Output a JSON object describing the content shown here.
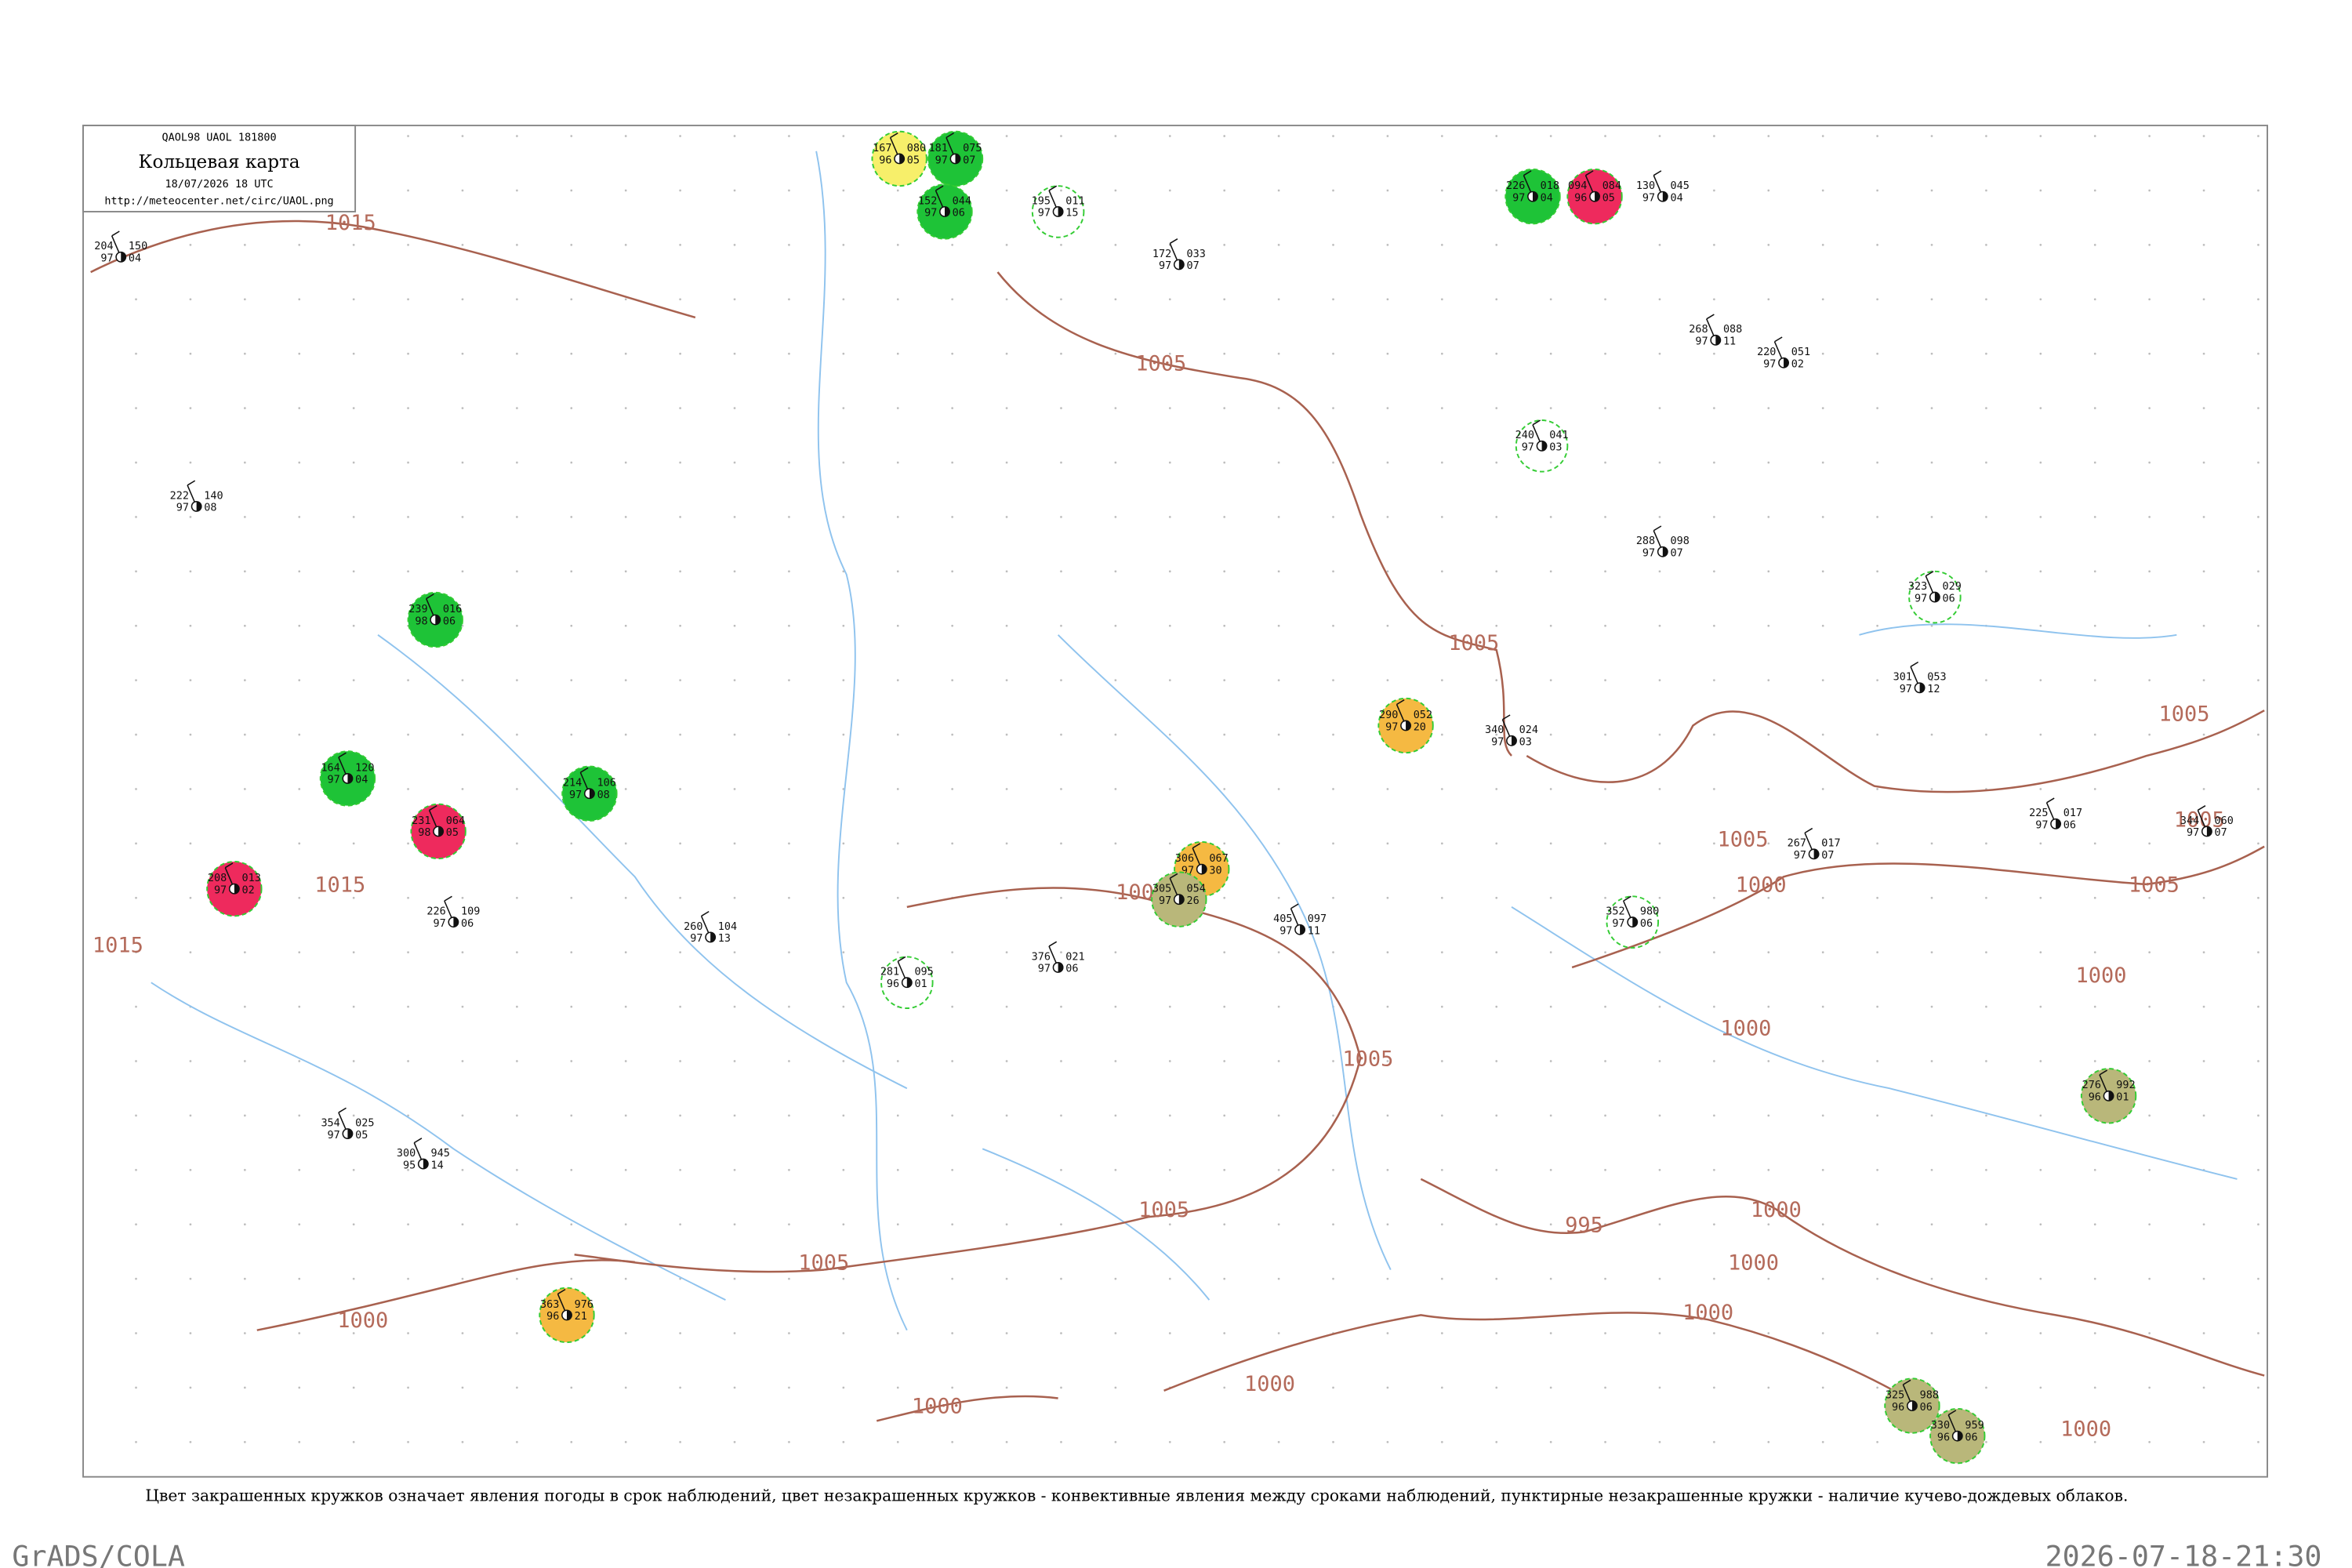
{
  "header": {
    "code": "QAOL98  UAOL  181800",
    "title": "Кольцевая карта",
    "date": "18/07/2026 18 UTC",
    "url": "http://meteocenter.net/circ/UAOL.png"
  },
  "isobar_labels": [
    "1015",
    "1015",
    "1015",
    "1005",
    "1005",
    "1005",
    "1000",
    "1005",
    "1005",
    "1005",
    "1000",
    "1000",
    "1000",
    "1000",
    "1000",
    "1000",
    "1000",
    "1000",
    "1000",
    "1005",
    "1005",
    "1005",
    "995",
    "1005"
  ],
  "stations": [
    {
      "t": "181",
      "d": "97",
      "p": "075",
      "c": "07",
      "fill": "#1ec337"
    },
    {
      "t": "226",
      "d": "97",
      "p": "018",
      "c": "04",
      "fill": "#1ec337"
    },
    {
      "t": "094",
      "d": "96",
      "p": "084",
      "c": "05",
      "fill": "#ee2a5d"
    },
    {
      "t": "167",
      "d": "96",
      "p": "080",
      "c": "05",
      "fill": "#f7ef6a"
    },
    {
      "t": "152",
      "d": "97",
      "p": "044",
      "c": "06",
      "fill": "#1ec337"
    },
    {
      "t": "239",
      "d": "98",
      "p": "016",
      "c": "06",
      "fill": "#1ec337"
    },
    {
      "t": "214",
      "d": "97",
      "p": "106",
      "c": "08",
      "fill": "#1ec337"
    },
    {
      "t": "164",
      "d": "97",
      "p": "120",
      "c": "04",
      "fill": "#1ec337"
    },
    {
      "t": "231",
      "d": "98",
      "p": "064",
      "c": "05",
      "fill": "#ee2a5d"
    },
    {
      "t": "208",
      "d": "97",
      "p": "013",
      "c": "02",
      "fill": "#ee2a5d"
    },
    {
      "t": "290",
      "d": "97",
      "p": "052",
      "c": "20",
      "fill": "#f5b942"
    },
    {
      "t": "306",
      "d": "97",
      "p": "067",
      "c": "30",
      "fill": "#f5b942"
    },
    {
      "t": "305",
      "d": "97",
      "p": "054",
      "c": "26",
      "fill": "#b9b77a"
    },
    {
      "t": "363",
      "d": "96",
      "p": "976",
      "c": "21",
      "fill": "#f5b942"
    },
    {
      "t": "276",
      "d": "96",
      "p": "992",
      "c": "01",
      "fill": "#b9b77a"
    },
    {
      "t": "325",
      "d": "96",
      "p": "988",
      "c": "06",
      "fill": "#b9b77a"
    },
    {
      "t": "330",
      "d": "96",
      "p": "959",
      "c": "06",
      "fill": "#b9b77a"
    },
    {
      "t": "204",
      "d": "97",
      "p": "150",
      "c": "04"
    },
    {
      "t": "222",
      "d": "97",
      "p": "140",
      "c": "08"
    },
    {
      "t": "260",
      "d": "97",
      "p": "104",
      "c": "13"
    },
    {
      "t": "281",
      "d": "96",
      "p": "095",
      "c": "01"
    },
    {
      "t": "376",
      "d": "97",
      "p": "021",
      "c": "06"
    },
    {
      "t": "405",
      "d": "97",
      "p": "097",
      "c": "11"
    },
    {
      "t": "340",
      "d": "97",
      "p": "024",
      "c": "03"
    },
    {
      "t": "352",
      "d": "97",
      "p": "980",
      "c": "06"
    },
    {
      "t": "267",
      "d": "97",
      "p": "017",
      "c": "07"
    },
    {
      "t": "225",
      "d": "97",
      "p": "017",
      "c": "06"
    },
    {
      "t": "344",
      "d": "97",
      "p": "060",
      "c": "07"
    },
    {
      "t": "240",
      "d": "97",
      "p": "041",
      "c": "03"
    },
    {
      "t": "220",
      "d": "97",
      "p": "051",
      "c": "02"
    },
    {
      "t": "130",
      "d": "97",
      "p": "045",
      "c": "04"
    },
    {
      "t": "172",
      "d": "97",
      "p": "033",
      "c": "07"
    },
    {
      "t": "195",
      "d": "97",
      "p": "011",
      "c": "15"
    },
    {
      "t": "226",
      "d": "97",
      "p": "109",
      "c": "06"
    },
    {
      "t": "354",
      "d": "97",
      "p": "025",
      "c": "05"
    },
    {
      "t": "288",
      "d": "97",
      "p": "098",
      "c": "07"
    },
    {
      "t": "323",
      "d": "97",
      "p": "029",
      "c": "06"
    },
    {
      "t": "301",
      "d": "97",
      "p": "053",
      "c": "12"
    },
    {
      "t": "268",
      "d": "97",
      "p": "088",
      "c": "11"
    },
    {
      "t": "300",
      "d": "95",
      "p": "945",
      "c": "14"
    }
  ],
  "caption": "Цвет закрашенных кружков означает явления погоды в срок наблюдений, цвет незакрашенных кружков - конвективные явления между сроками наблюдений, пунктирные незакрашенные кружки - наличие кучево-дождевых облаков.",
  "footer": {
    "left": "GrADS/COLA",
    "right": "2026-07-18-21:30"
  }
}
